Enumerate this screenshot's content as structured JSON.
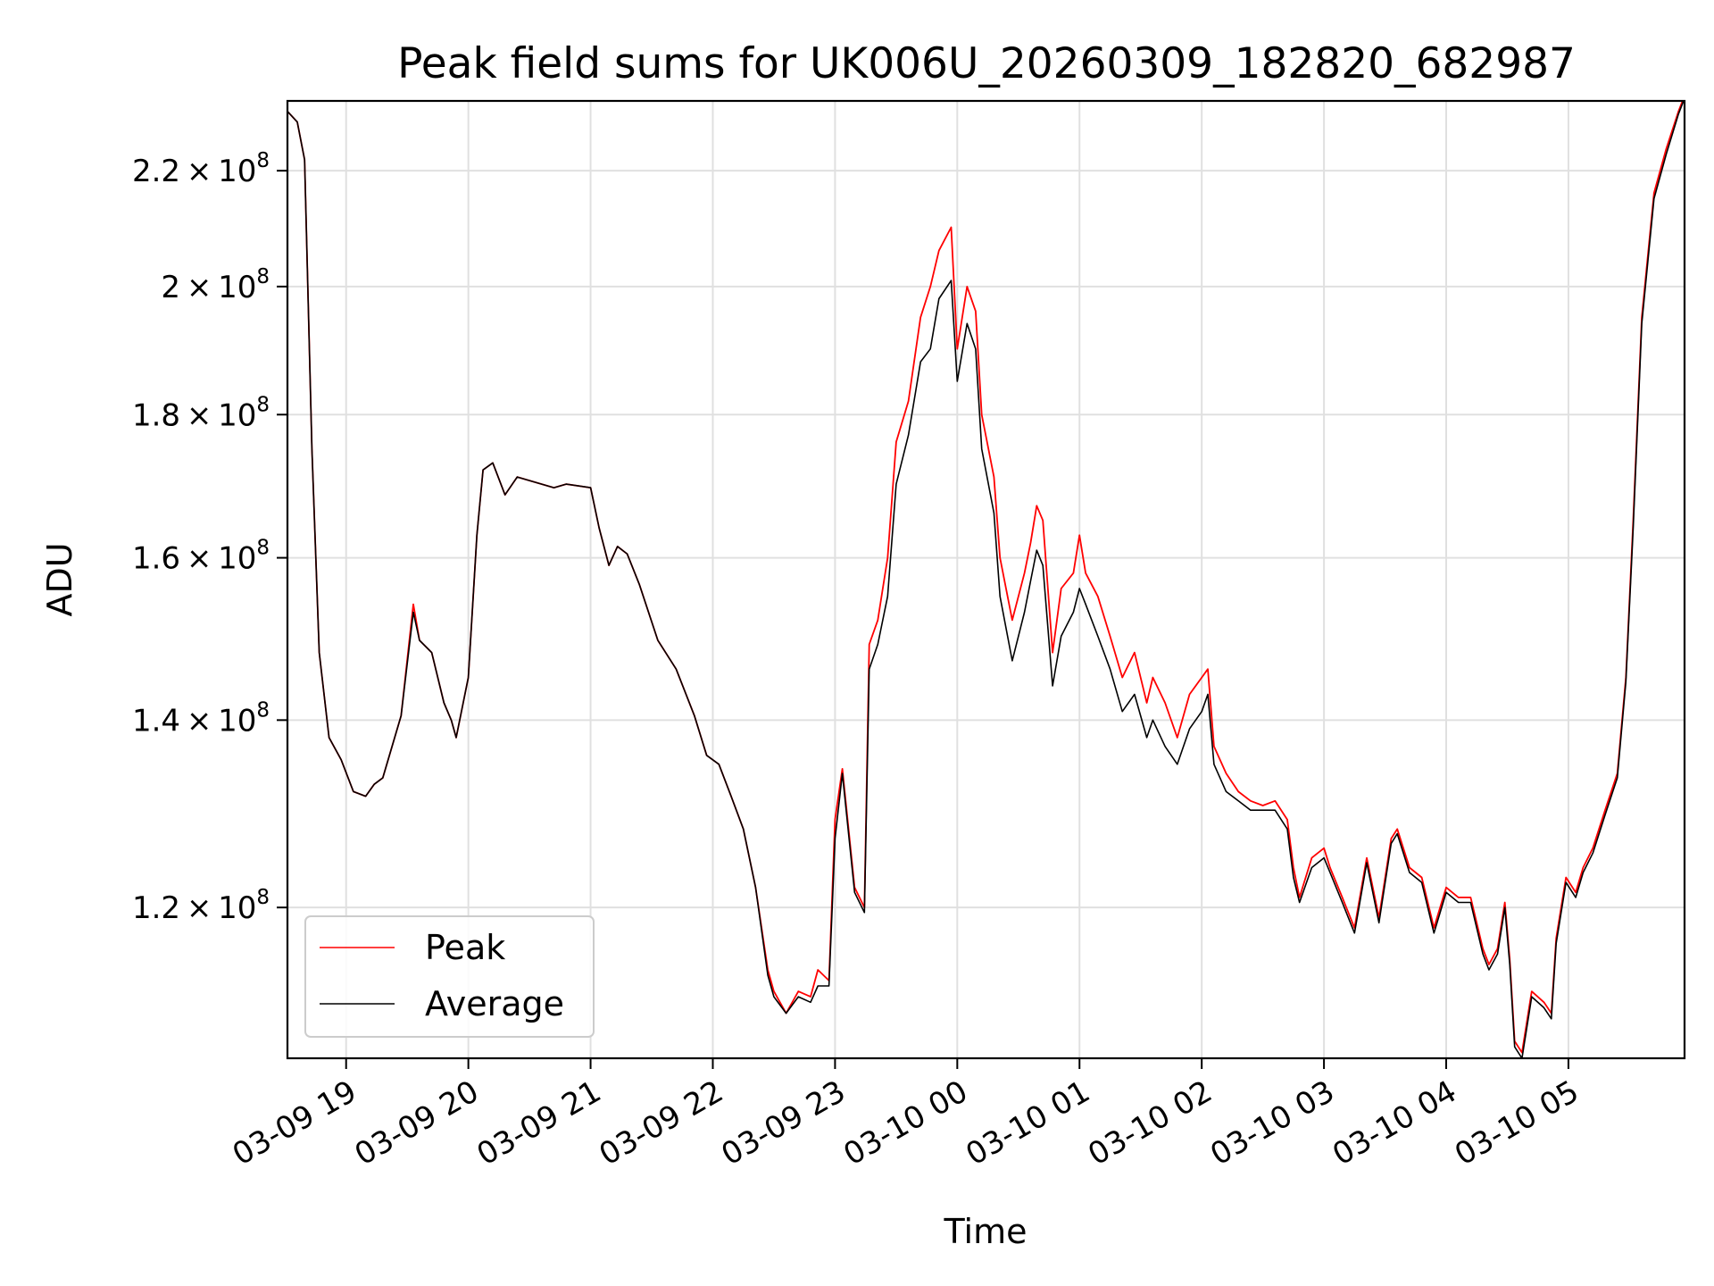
{
  "chart_data": {
    "type": "line",
    "title": "Peak field sums for UK006U_20260309_182820_682987",
    "xlabel": "Time",
    "ylabel": "ADU",
    "yscale": "log",
    "grid": true,
    "legend_position": "lower-left",
    "xlim": [
      18.52,
      29.95
    ],
    "ylim": [
      106000000,
      233000000
    ],
    "x_units": "hours since 2026-03-09 00:00",
    "y_ticks": [
      {
        "value": 120000000,
        "mantissa": "1.2",
        "exp": "8"
      },
      {
        "value": 140000000,
        "mantissa": "1.4",
        "exp": "8"
      },
      {
        "value": 160000000,
        "mantissa": "1.6",
        "exp": "8"
      },
      {
        "value": 180000000,
        "mantissa": "1.8",
        "exp": "8"
      },
      {
        "value": 200000000,
        "mantissa": "2",
        "exp": "8"
      },
      {
        "value": 220000000,
        "mantissa": "2.2",
        "exp": "8"
      }
    ],
    "y_tick_times": "×10",
    "x_ticks": [
      {
        "value": 19,
        "label": "03-09 19"
      },
      {
        "value": 20,
        "label": "03-09 20"
      },
      {
        "value": 21,
        "label": "03-09 21"
      },
      {
        "value": 22,
        "label": "03-09 22"
      },
      {
        "value": 23,
        "label": "03-09 23"
      },
      {
        "value": 24,
        "label": "03-10 00"
      },
      {
        "value": 25,
        "label": "03-10 01"
      },
      {
        "value": 26,
        "label": "03-10 02"
      },
      {
        "value": 27,
        "label": "03-10 03"
      },
      {
        "value": 28,
        "label": "03-10 04"
      },
      {
        "value": 29,
        "label": "03-10 05"
      }
    ],
    "x": [
      18.52,
      18.6,
      18.66,
      18.72,
      18.78,
      18.86,
      18.96,
      19.06,
      19.16,
      19.23,
      19.3,
      19.45,
      19.55,
      19.6,
      19.7,
      19.8,
      19.86,
      19.9,
      20.0,
      20.07,
      20.12,
      20.2,
      20.3,
      20.4,
      20.5,
      20.6,
      20.7,
      20.8,
      21.0,
      21.07,
      21.15,
      21.22,
      21.3,
      21.4,
      21.55,
      21.7,
      21.85,
      21.95,
      22.05,
      22.15,
      22.25,
      22.35,
      22.45,
      22.5,
      22.6,
      22.7,
      22.8,
      22.86,
      22.95,
      23.0,
      23.06,
      23.16,
      23.24,
      23.28,
      23.35,
      23.43,
      23.5,
      23.6,
      23.7,
      23.78,
      23.85,
      23.95,
      24.0,
      24.08,
      24.15,
      24.2,
      24.3,
      24.35,
      24.45,
      24.55,
      24.6,
      24.65,
      24.7,
      24.78,
      24.85,
      24.95,
      25.0,
      25.05,
      25.15,
      25.25,
      25.35,
      25.45,
      25.55,
      25.6,
      25.7,
      25.8,
      25.9,
      26.0,
      26.05,
      26.1,
      26.2,
      26.3,
      26.4,
      26.5,
      26.6,
      26.7,
      26.75,
      26.8,
      26.9,
      27.0,
      27.05,
      27.15,
      27.25,
      27.35,
      27.45,
      27.55,
      27.6,
      27.7,
      27.8,
      27.9,
      28.0,
      28.1,
      28.2,
      28.3,
      28.35,
      28.42,
      28.48,
      28.52,
      28.56,
      28.62,
      28.7,
      28.8,
      28.86,
      28.9,
      28.98,
      29.06,
      29.12,
      29.2,
      29.3,
      29.4,
      29.47,
      29.53,
      29.6,
      29.7,
      29.8,
      29.9,
      29.95
    ],
    "series": [
      {
        "name": "Peak",
        "color": "#ff0000",
        "values": [
          231000000,
          229000000,
          222000000,
          175000000,
          148000000,
          138000000,
          135500000,
          132000000,
          131500000,
          132800000,
          133500000,
          140500000,
          154000000,
          149500000,
          148000000,
          142000000,
          140000000,
          138000000,
          145000000,
          163000000,
          172000000,
          173000000,
          168500000,
          171000000,
          170500000,
          170000000,
          169500000,
          170000000,
          169500000,
          164000000,
          159000000,
          161500000,
          160500000,
          156500000,
          149500000,
          146000000,
          140500000,
          136000000,
          135000000,
          131500000,
          128000000,
          122000000,
          114000000,
          112000000,
          110000000,
          112000000,
          111500000,
          114000000,
          113000000,
          129000000,
          134500000,
          122000000,
          120000000,
          149000000,
          152000000,
          160000000,
          176000000,
          182000000,
          195000000,
          200000000,
          206000000,
          210000000,
          190000000,
          200000000,
          196000000,
          180000000,
          171000000,
          160000000,
          152000000,
          158000000,
          162000000,
          167000000,
          165000000,
          148000000,
          156000000,
          158000000,
          163000000,
          158000000,
          155000000,
          150000000,
          145000000,
          148000000,
          142000000,
          145000000,
          142000000,
          138000000,
          143000000,
          145000000,
          146000000,
          137000000,
          134000000,
          132000000,
          131000000,
          130500000,
          131000000,
          129000000,
          124000000,
          121000000,
          125000000,
          126000000,
          124000000,
          121000000,
          118000000,
          125000000,
          119000000,
          127000000,
          128000000,
          124000000,
          123000000,
          118000000,
          122000000,
          121000000,
          121000000,
          116000000,
          114500000,
          116000000,
          120500000,
          115000000,
          107500000,
          106500000,
          112000000,
          111000000,
          110000000,
          117000000,
          123000000,
          121500000,
          124000000,
          126000000,
          130000000,
          134000000,
          145000000,
          165000000,
          195000000,
          216000000,
          224000000,
          231000000,
          234000000
        ]
      },
      {
        "name": "Average",
        "color": "#000000",
        "values": [
          231000000,
          229000000,
          222000000,
          175000000,
          148000000,
          138000000,
          135500000,
          132000000,
          131500000,
          132800000,
          133500000,
          140500000,
          153000000,
          149500000,
          148000000,
          142000000,
          140000000,
          138000000,
          145000000,
          163000000,
          172000000,
          173000000,
          168500000,
          171000000,
          170500000,
          170000000,
          169500000,
          170000000,
          169500000,
          164000000,
          159000000,
          161500000,
          160500000,
          156500000,
          149500000,
          146000000,
          140500000,
          136000000,
          135000000,
          131500000,
          128000000,
          122000000,
          113500000,
          111500000,
          110000000,
          111500000,
          111000000,
          112500000,
          112500000,
          127000000,
          134000000,
          121500000,
          119500000,
          146000000,
          149000000,
          155000000,
          170000000,
          177000000,
          188000000,
          190000000,
          198000000,
          201000000,
          185000000,
          194000000,
          190000000,
          175000000,
          166000000,
          155000000,
          147000000,
          153000000,
          157000000,
          161000000,
          159000000,
          144000000,
          150000000,
          153000000,
          156000000,
          154000000,
          150000000,
          146000000,
          141000000,
          143000000,
          138000000,
          140000000,
          137000000,
          135000000,
          139000000,
          141000000,
          143000000,
          135000000,
          132000000,
          131000000,
          130000000,
          130000000,
          130000000,
          128000000,
          123000000,
          120500000,
          124000000,
          125000000,
          123500000,
          120500000,
          117500000,
          124500000,
          118500000,
          126500000,
          127500000,
          123500000,
          122500000,
          117500000,
          121500000,
          120500000,
          120500000,
          115500000,
          114000000,
          115500000,
          120000000,
          114500000,
          107000000,
          106000000,
          111500000,
          110500000,
          109500000,
          116500000,
          122500000,
          121000000,
          123500000,
          125500000,
          129500000,
          133500000,
          144500000,
          164000000,
          194000000,
          215000000,
          223000000,
          230500000,
          233500000
        ]
      }
    ]
  }
}
